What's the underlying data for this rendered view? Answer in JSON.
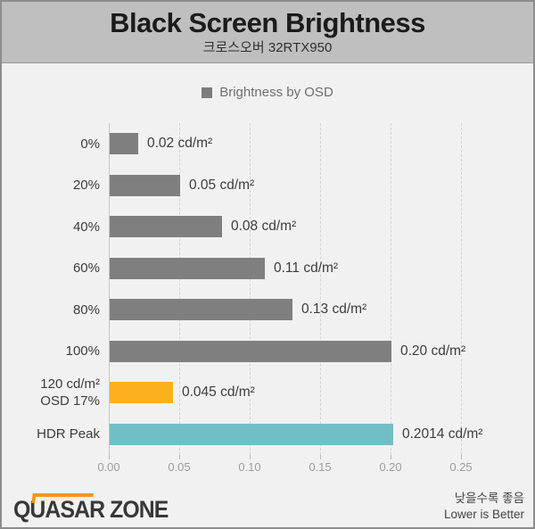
{
  "header": {
    "title": "Black Screen Brightness",
    "subtitle": "크로스오버 32RTX950"
  },
  "legend": {
    "label": "Brightness by OSD",
    "marker_color": "#7d7d7d"
  },
  "chart_data": {
    "type": "bar",
    "orientation": "horizontal",
    "title": "Black Screen Brightness",
    "subtitle": "크로스오버 32RTX950",
    "legend_entries": [
      "Brightness by OSD"
    ],
    "legend_position": "top-center",
    "grid": "vertical-dashed",
    "categories": [
      "0%",
      "20%",
      "40%",
      "60%",
      "80%",
      "100%",
      "120 cd/m²\nOSD 17%",
      "HDR Peak"
    ],
    "values": [
      0.02,
      0.05,
      0.08,
      0.11,
      0.13,
      0.2,
      0.045,
      0.2014
    ],
    "value_labels": [
      "0.02 cd/m²",
      "0.05 cd/m²",
      "0.08 cd/m²",
      "0.11 cd/m²",
      "0.13 cd/m²",
      "0.20 cd/m²",
      "0.045 cd/m²",
      "0.2014 cd/m²"
    ],
    "bar_colors": [
      "#7f7f7f",
      "#7f7f7f",
      "#7f7f7f",
      "#7f7f7f",
      "#7f7f7f",
      "#7f7f7f",
      "#fbb11d",
      "#70bfc5"
    ],
    "xlim": [
      0,
      0.2645
    ],
    "xticks": [
      0.0,
      0.05,
      0.1,
      0.15,
      0.2,
      0.25
    ],
    "xtick_labels": [
      "0.00",
      "0.05",
      "0.10",
      "0.15",
      "0.20",
      "0.25"
    ],
    "xlabel": "",
    "ylabel": ""
  },
  "footer": {
    "logo_text": "QUASAR ZONE",
    "note_ko": "낮을수록 좋음",
    "note_en": "Lower is Better",
    "logo_accent_color": "#f7941e"
  }
}
